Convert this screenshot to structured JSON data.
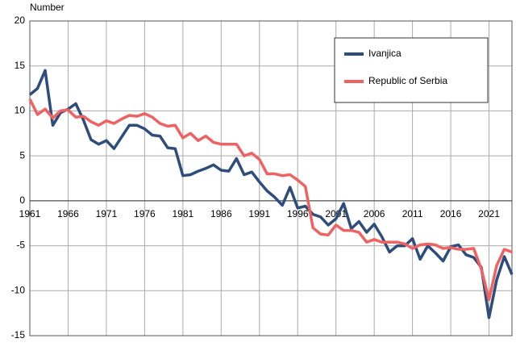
{
  "chart_data": {
    "type": "line",
    "y_label": "Number",
    "x": [
      1961,
      1962,
      1963,
      1964,
      1965,
      1966,
      1967,
      1968,
      1969,
      1970,
      1971,
      1972,
      1973,
      1974,
      1975,
      1976,
      1977,
      1978,
      1979,
      1980,
      1981,
      1982,
      1983,
      1984,
      1985,
      1986,
      1987,
      1988,
      1989,
      1990,
      1991,
      1992,
      1993,
      1994,
      1995,
      1996,
      1997,
      1998,
      1999,
      2000,
      2001,
      2002,
      2003,
      2004,
      2005,
      2006,
      2007,
      2008,
      2009,
      2010,
      2011,
      2012,
      2013,
      2014,
      2015,
      2016,
      2017,
      2018,
      2019,
      2020,
      2021,
      2022,
      2023,
      2024
    ],
    "series": [
      {
        "name": "Ivanjica",
        "color": "#2e4d7b",
        "values": [
          11.8,
          12.5,
          14.5,
          8.4,
          9.8,
          10.2,
          10.8,
          9.0,
          6.8,
          6.3,
          6.7,
          5.8,
          7.1,
          8.4,
          8.4,
          8.0,
          7.3,
          7.2,
          5.9,
          5.8,
          2.8,
          2.9,
          3.3,
          3.6,
          4.0,
          3.4,
          3.3,
          4.7,
          2.9,
          3.2,
          2.1,
          1.1,
          0.4,
          -0.5,
          1.5,
          -0.8,
          -0.6,
          -1.5,
          -1.8,
          -2.7,
          -2.0,
          -0.3,
          -3.1,
          -2.3,
          -3.5,
          -2.6,
          -4.0,
          -5.7,
          -5.0,
          -5.0,
          -4.2,
          -6.5,
          -5.0,
          -5.8,
          -6.7,
          -5.1,
          -4.9,
          -6.0,
          -6.3,
          -7.4,
          -13.0,
          -8.8,
          -6.2,
          -8.2
        ]
      },
      {
        "name": "Republic of Serbia",
        "color": "#f06262",
        "values": [
          11.3,
          9.6,
          10.2,
          9.2,
          10.0,
          10.1,
          9.3,
          9.4,
          8.8,
          8.4,
          8.9,
          8.6,
          9.1,
          9.5,
          9.4,
          9.7,
          9.3,
          8.6,
          8.3,
          8.4,
          7.0,
          7.5,
          6.7,
          7.2,
          6.5,
          6.3,
          6.3,
          6.3,
          5.0,
          5.3,
          4.6,
          3.0,
          3.0,
          2.8,
          2.9,
          2.3,
          1.6,
          -3.0,
          -3.7,
          -3.8,
          -2.7,
          -3.3,
          -3.3,
          -3.5,
          -4.6,
          -4.3,
          -4.6,
          -4.6,
          -4.6,
          -4.8,
          -5.3,
          -4.9,
          -4.8,
          -4.9,
          -5.3,
          -5.2,
          -5.4,
          -5.4,
          -5.3,
          -7.6,
          -11.0,
          -7.2,
          -5.4,
          -5.7
        ]
      }
    ],
    "xlim": [
      1961,
      2024
    ],
    "xticks": [
      1961,
      1966,
      1971,
      1976,
      1981,
      1986,
      1991,
      1996,
      2001,
      2006,
      2011,
      2016,
      2021
    ],
    "ylim": [
      -15,
      20
    ],
    "yticks": [
      -15,
      -10,
      -5,
      0,
      5,
      10,
      15,
      20
    ],
    "grid": true,
    "legend": "upper right"
  }
}
